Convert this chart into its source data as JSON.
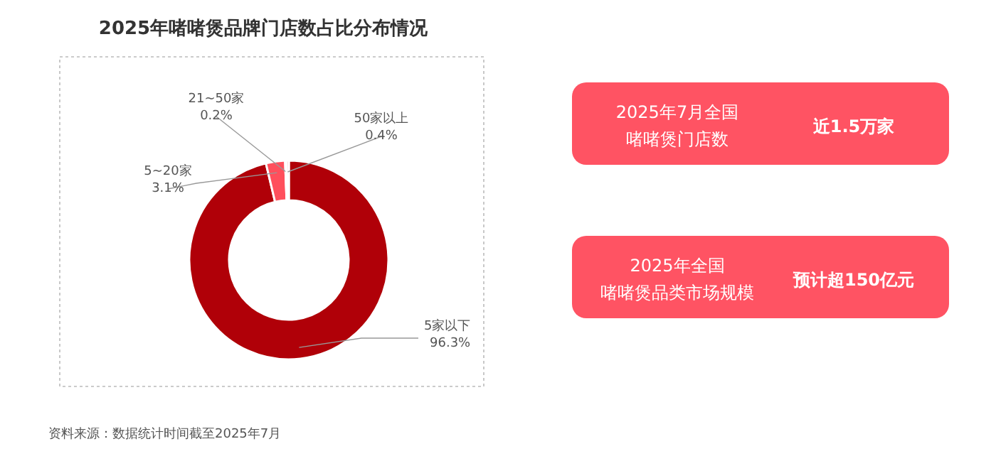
{
  "chart_data": [
    {
      "type": "donut",
      "title": "2025年啫啫煲品牌门店数占比分布情况",
      "categories": [
        "5家以下",
        "5~20家",
        "21~50家",
        "50家以上"
      ],
      "values": [
        96.3,
        3.1,
        0.2,
        0.4
      ],
      "value_labels": [
        "96.3%",
        "3.1%",
        "0.2%",
        "0.4%"
      ],
      "colors": [
        "#b00008",
        "#ff4f5c",
        "#ff8a93",
        "#ffb3b9"
      ],
      "annotations": [
        "资料来源：数据统计时间截至2025年7月"
      ]
    },
    {
      "type": "other",
      "annotations": [
        "2025年7月全国",
        "啫啫煲门店数",
        "近1.5万家"
      ]
    },
    {
      "type": "other",
      "annotations": [
        "2025年全国",
        "啫啫煲品类市场规模",
        "预计超150亿元"
      ]
    }
  ]
}
